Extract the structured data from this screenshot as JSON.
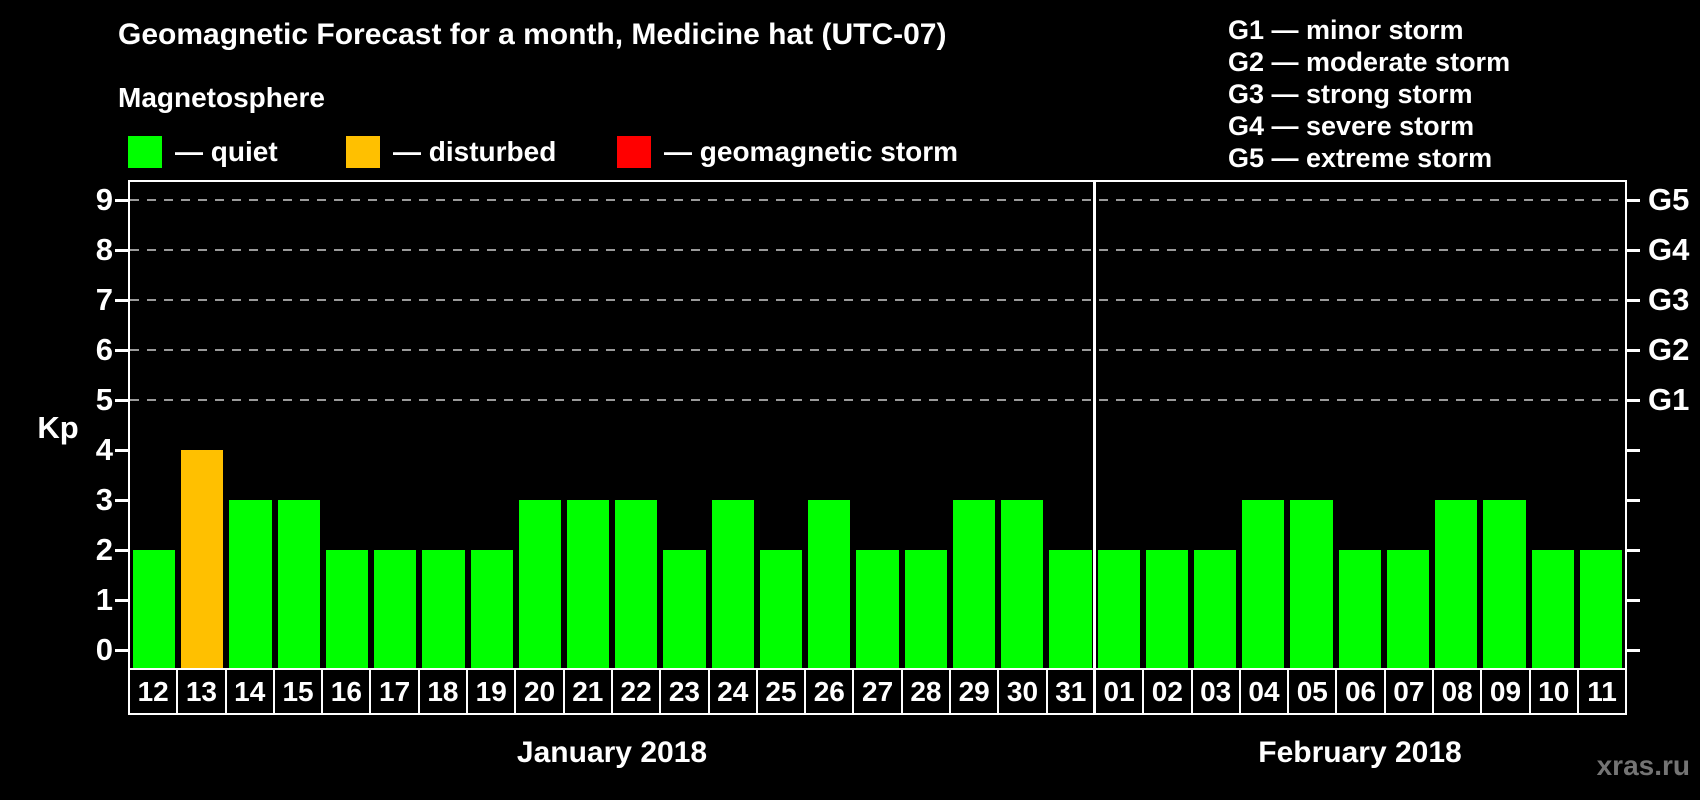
{
  "header": {
    "title": "Geomagnetic Forecast for a month, Medicine hat (UTC-07)",
    "subtitle": "Magnetosphere"
  },
  "legend": {
    "items": [
      {
        "id": "quiet",
        "label": "— quiet",
        "color": "#00ff00"
      },
      {
        "id": "disturbed",
        "label": "— disturbed",
        "color": "#ffc000"
      },
      {
        "id": "storm",
        "label": "— geomagnetic storm",
        "color": "#ff0000"
      }
    ]
  },
  "g_scale_legend": {
    "lines": [
      "G1 — minor storm",
      "G2 — moderate storm",
      "G3 — strong storm",
      "G4 — severe storm",
      "G5 — extreme storm"
    ]
  },
  "chart_data": {
    "type": "bar",
    "ylabel": "Kp",
    "ylim": [
      0,
      9
    ],
    "y_ticks": [
      0,
      1,
      2,
      3,
      4,
      5,
      6,
      7,
      8,
      9
    ],
    "grid_levels": [
      5,
      6,
      7,
      8,
      9
    ],
    "grid": "dashed horizontal lines at Kp 5–9",
    "legend_position": "top",
    "right_axis_labels": [
      {
        "kp": 5,
        "label": "G1"
      },
      {
        "kp": 6,
        "label": "G2"
      },
      {
        "kp": 7,
        "label": "G3"
      },
      {
        "kp": 8,
        "label": "G4"
      },
      {
        "kp": 9,
        "label": "G5"
      }
    ],
    "series_colors": {
      "quiet": "#00ff00",
      "disturbed": "#ffc000",
      "storm": "#ff0000"
    },
    "months": [
      {
        "label": "January 2018",
        "day_count": 20
      },
      {
        "label": "February 2018",
        "day_count": 11
      }
    ],
    "days": [
      {
        "day": "12",
        "kp": 2,
        "status": "quiet"
      },
      {
        "day": "13",
        "kp": 4,
        "status": "disturbed"
      },
      {
        "day": "14",
        "kp": 3,
        "status": "quiet"
      },
      {
        "day": "15",
        "kp": 3,
        "status": "quiet"
      },
      {
        "day": "16",
        "kp": 2,
        "status": "quiet"
      },
      {
        "day": "17",
        "kp": 2,
        "status": "quiet"
      },
      {
        "day": "18",
        "kp": 2,
        "status": "quiet"
      },
      {
        "day": "19",
        "kp": 2,
        "status": "quiet"
      },
      {
        "day": "20",
        "kp": 3,
        "status": "quiet"
      },
      {
        "day": "21",
        "kp": 3,
        "status": "quiet"
      },
      {
        "day": "22",
        "kp": 3,
        "status": "quiet"
      },
      {
        "day": "23",
        "kp": 2,
        "status": "quiet"
      },
      {
        "day": "24",
        "kp": 3,
        "status": "quiet"
      },
      {
        "day": "25",
        "kp": 2,
        "status": "quiet"
      },
      {
        "day": "26",
        "kp": 3,
        "status": "quiet"
      },
      {
        "day": "27",
        "kp": 2,
        "status": "quiet"
      },
      {
        "day": "28",
        "kp": 2,
        "status": "quiet"
      },
      {
        "day": "29",
        "kp": 3,
        "status": "quiet"
      },
      {
        "day": "30",
        "kp": 3,
        "status": "quiet"
      },
      {
        "day": "31",
        "kp": 2,
        "status": "quiet"
      },
      {
        "day": "01",
        "kp": 2,
        "status": "quiet"
      },
      {
        "day": "02",
        "kp": 2,
        "status": "quiet"
      },
      {
        "day": "03",
        "kp": 2,
        "status": "quiet"
      },
      {
        "day": "04",
        "kp": 3,
        "status": "quiet"
      },
      {
        "day": "05",
        "kp": 3,
        "status": "quiet"
      },
      {
        "day": "06",
        "kp": 2,
        "status": "quiet"
      },
      {
        "day": "07",
        "kp": 2,
        "status": "quiet"
      },
      {
        "day": "08",
        "kp": 3,
        "status": "quiet"
      },
      {
        "day": "09",
        "kp": 3,
        "status": "quiet"
      },
      {
        "day": "10",
        "kp": 2,
        "status": "quiet"
      },
      {
        "day": "11",
        "kp": 2,
        "status": "quiet"
      }
    ]
  },
  "watermark": "xras.ru"
}
